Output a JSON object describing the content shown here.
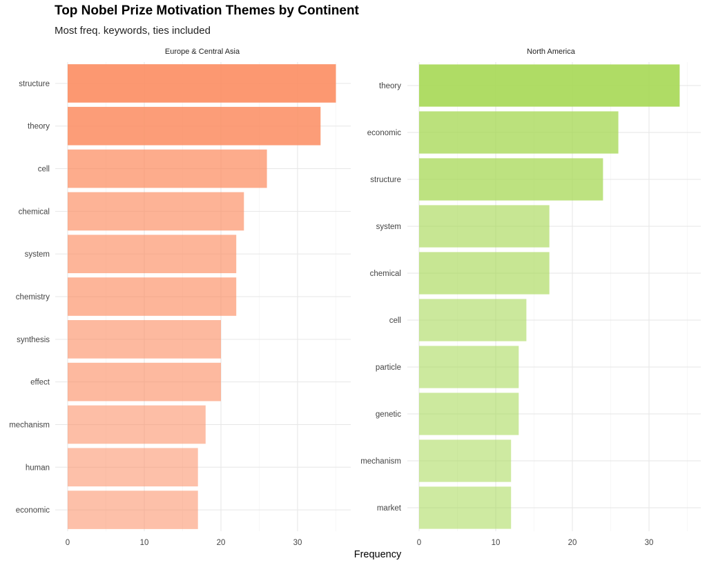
{
  "chart_data": [
    {
      "type": "bar",
      "orientation": "horizontal",
      "panel": "Europe & Central Asia",
      "categories": [
        "structure",
        "theory",
        "cell",
        "chemical",
        "system",
        "chemistry",
        "synthesis",
        "effect",
        "mechanism",
        "human",
        "economic"
      ],
      "values": [
        35,
        33,
        26,
        23,
        22,
        22,
        20,
        20,
        18,
        17,
        17
      ],
      "color": "#FC8D62",
      "xlim": [
        0,
        37
      ],
      "xticks": [
        0,
        10,
        20,
        30
      ]
    },
    {
      "type": "bar",
      "orientation": "horizontal",
      "panel": "North America",
      "categories": [
        "theory",
        "economic",
        "structure",
        "system",
        "chemical",
        "cell",
        "particle",
        "genetic",
        "mechanism",
        "market"
      ],
      "values": [
        34,
        26,
        24,
        17,
        17,
        14,
        13,
        13,
        12,
        12
      ],
      "color": "#A6D854",
      "xlim": [
        0,
        36.5
      ],
      "xticks": [
        0,
        10,
        20,
        30
      ]
    }
  ],
  "title": "Top Nobel Prize Motivation Themes by Continent",
  "subtitle": "Most freq. keywords, ties included",
  "xlabel": "Frequency",
  "grid": true
}
